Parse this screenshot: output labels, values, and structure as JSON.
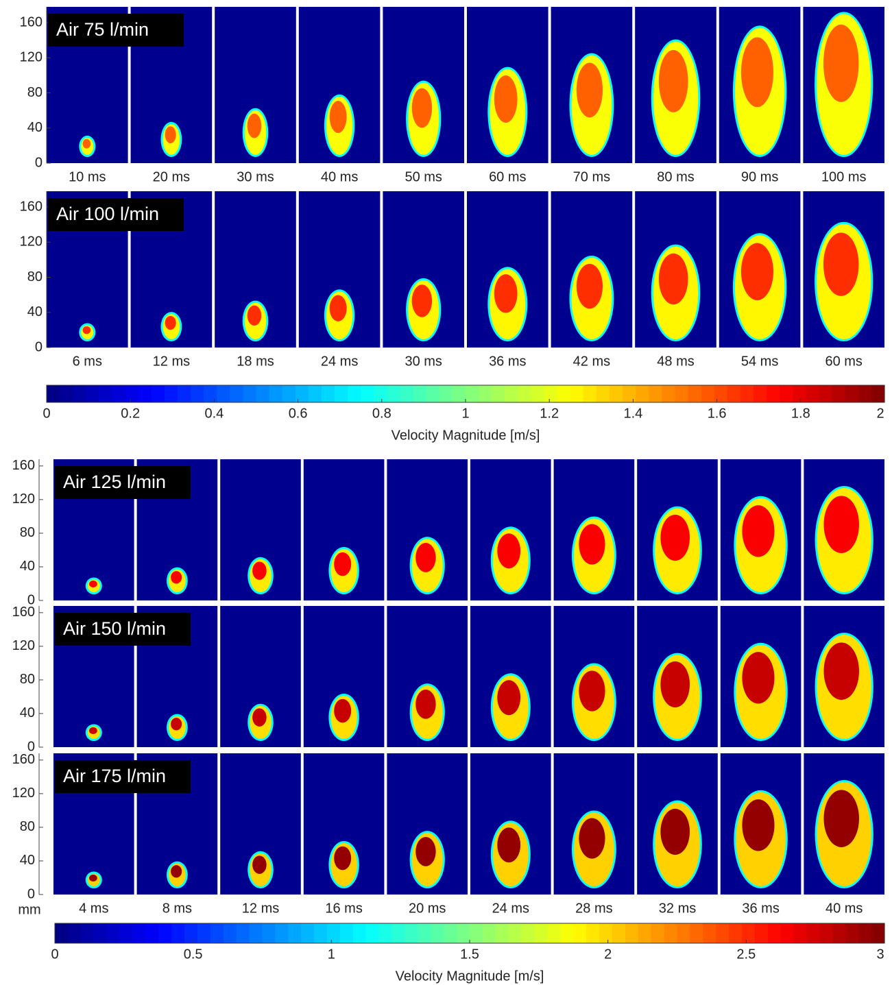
{
  "chart_data": [
    {
      "type": "panel-grid",
      "rows": [
        {
          "label": "Air 75 l/min",
          "times": [
            "10 ms",
            "20 ms",
            "30 ms",
            "40 ms",
            "50 ms",
            "60 ms",
            "70 ms",
            "80 ms",
            "90 ms",
            "100 ms"
          ]
        },
        {
          "label": "Air 100 l/min",
          "times": [
            "6 ms",
            "12 ms",
            "18 ms",
            "24 ms",
            "30 ms",
            "36 ms",
            "42 ms",
            "48 ms",
            "54 ms",
            "60 ms"
          ]
        }
      ],
      "ylim": [
        0,
        178
      ],
      "yticks": [
        0,
        40,
        80,
        120,
        160
      ],
      "colorbar": {
        "lim": [
          0,
          2
        ],
        "ticks": [
          0,
          0.2,
          0.4,
          0.6,
          0.8,
          1,
          1.2,
          1.4,
          1.6,
          1.8,
          2
        ],
        "label": "Velocity Magnitude [m/s]"
      }
    },
    {
      "type": "panel-grid",
      "y_unit": "mm",
      "rows": [
        {
          "label": "Air 125 l/min"
        },
        {
          "label": "Air 150 l/min"
        },
        {
          "label": "Air 175 l/min"
        }
      ],
      "times": [
        "4 ms",
        "8 ms",
        "12 ms",
        "16 ms",
        "20 ms",
        "24 ms",
        "28 ms",
        "32 ms",
        "36 ms",
        "40 ms"
      ],
      "ylim": [
        0,
        168
      ],
      "yticks": [
        0,
        40,
        80,
        120,
        160
      ],
      "colorbar": {
        "lim": [
          0,
          3
        ],
        "ticks": [
          0,
          0.5,
          1,
          1.5,
          2,
          2.5,
          3
        ],
        "label": "Velocity Magnitude [m/s]"
      }
    }
  ]
}
